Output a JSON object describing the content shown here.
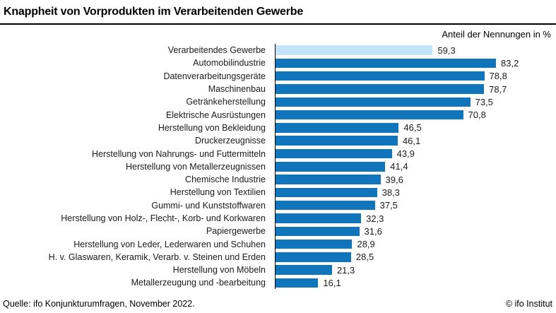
{
  "header": {
    "title": "Knappheit von Vorprodukten im Verarbeitenden Gewerbe",
    "subtitle": "Anteil der Nennungen in %"
  },
  "footer": {
    "source": "Quelle: ifo Konjunkturumfragen, November 2022.",
    "credit": "© ifo Institut"
  },
  "colors": {
    "bar": "#1175bc",
    "highlight_bar": "#c3e3f8",
    "axis": "#000000"
  },
  "chart_data": {
    "type": "bar",
    "orientation": "horizontal",
    "title": "Knappheit von Vorprodukten im Verarbeitenden Gewerbe",
    "xlabel": "Anteil der Nennungen in %",
    "ylabel": "",
    "xlim": [
      0,
      100
    ],
    "grid": false,
    "legend": "none",
    "highlighted_category": "Verarbeitendes Gewerbe",
    "categories": [
      "Verarbeitendes Gewerbe",
      "Automobilindustrie",
      "Datenverarbeitungsgeräte",
      "Maschinenbau",
      "Getränkeherstellung",
      "Elektrische Ausrüstungen",
      "Herstellung von Bekleidung",
      "Druckerzeugnisse",
      "Herstellung von Nahrungs- und Futtermitteln",
      "Herstellung von Metallerzeugnissen",
      "Chemische Industrie",
      "Herstellung von Textilien",
      "Gummi- und Kunststoffwaren",
      "Herstellung von Holz-, Flecht-, Korb- und Korkwaren",
      "Papiergewerbe",
      "Herstellung von Leder, Lederwaren und Schuhen",
      "H. v. Glaswaren, Keramik, Verarb. v. Steinen und Erden",
      "Herstellung von Möbeln",
      "Metallerzeugung und -bearbeitung"
    ],
    "values": [
      59.3,
      83.2,
      78.8,
      78.7,
      73.5,
      70.8,
      46.5,
      46.1,
      43.9,
      41.4,
      39.6,
      38.3,
      37.5,
      32.3,
      31.6,
      28.9,
      28.5,
      21.3,
      16.1
    ],
    "value_labels": [
      "59,3",
      "83,2",
      "78,8",
      "78,7",
      "73,5",
      "70,8",
      "46,5",
      "46,1",
      "43,9",
      "41,4",
      "39,6",
      "38,3",
      "37,5",
      "32,3",
      "31,6",
      "28,9",
      "28,5",
      "21,3",
      "16,1"
    ]
  }
}
